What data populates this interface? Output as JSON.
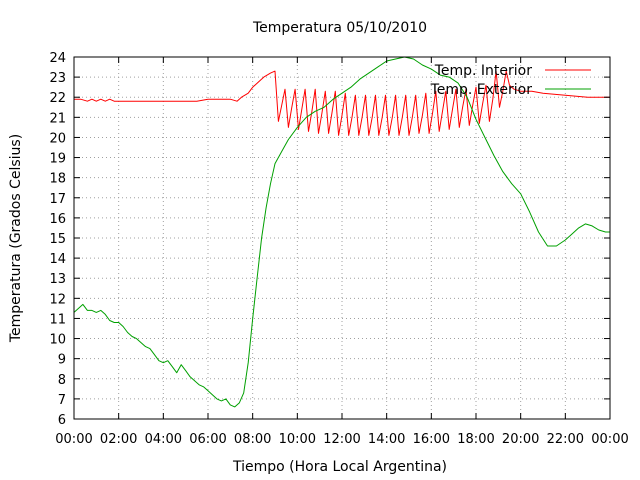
{
  "chart_data": {
    "type": "line",
    "title": "Temperatura 05/10/2010",
    "xlabel": "Tiempo (Hora Local Argentina)",
    "ylabel": "Temperatura (Grados Celsius)",
    "xlim": [
      0,
      24
    ],
    "ylim": [
      6,
      24
    ],
    "x_tick_labels": [
      "00:00",
      "02:00",
      "04:00",
      "06:00",
      "08:00",
      "10:00",
      "12:00",
      "14:00",
      "16:00",
      "18:00",
      "20:00",
      "22:00",
      "00:00"
    ],
    "y_ticks": [
      6,
      7,
      8,
      9,
      10,
      11,
      12,
      13,
      14,
      15,
      16,
      17,
      18,
      19,
      20,
      21,
      22,
      23,
      24
    ],
    "grid": true,
    "legend_position": "top-right",
    "colors": {
      "interior": "#ff0000",
      "exterior": "#00a000"
    },
    "series": [
      {
        "name": "Temp. Interior",
        "color": "#ff0000",
        "x": [
          0,
          0.3,
          0.6,
          0.8,
          1.0,
          1.2,
          1.4,
          1.6,
          1.8,
          2.0,
          3.0,
          4.0,
          5.0,
          5.5,
          6.0,
          6.5,
          7.0,
          7.3,
          7.5,
          7.8,
          8.0,
          8.3,
          8.5,
          8.8,
          9.0,
          9.15,
          9.3,
          9.45,
          9.6,
          9.75,
          9.9,
          10.05,
          10.2,
          10.35,
          10.5,
          10.65,
          10.8,
          10.95,
          11.1,
          11.25,
          11.4,
          11.55,
          11.7,
          11.85,
          12.0,
          12.15,
          12.3,
          12.45,
          12.6,
          12.75,
          12.9,
          13.05,
          13.2,
          13.35,
          13.5,
          13.65,
          13.8,
          13.95,
          14.1,
          14.25,
          14.4,
          14.55,
          14.7,
          14.85,
          15.0,
          15.15,
          15.3,
          15.45,
          15.6,
          15.75,
          15.9,
          16.05,
          16.2,
          16.35,
          16.5,
          16.65,
          16.8,
          16.95,
          17.1,
          17.25,
          17.4,
          17.55,
          17.7,
          17.85,
          18.0,
          18.15,
          18.3,
          18.45,
          18.6,
          18.75,
          18.9,
          19.05,
          19.2,
          19.35,
          19.5,
          19.7,
          20.0,
          20.5,
          21.0,
          22.0,
          23.0,
          24.0
        ],
        "values": [
          21.9,
          21.9,
          21.8,
          21.9,
          21.8,
          21.9,
          21.8,
          21.9,
          21.8,
          21.8,
          21.8,
          21.8,
          21.8,
          21.8,
          21.9,
          21.9,
          21.9,
          21.8,
          22.0,
          22.2,
          22.5,
          22.8,
          23.0,
          23.2,
          23.3,
          20.8,
          21.6,
          22.4,
          20.5,
          21.5,
          22.4,
          20.4,
          21.4,
          22.4,
          20.3,
          21.3,
          22.4,
          20.2,
          21.2,
          22.3,
          20.2,
          21.2,
          22.3,
          20.1,
          21.1,
          22.2,
          20.1,
          21.0,
          22.1,
          20.1,
          21.0,
          22.1,
          20.1,
          21.0,
          22.1,
          20.1,
          21.0,
          22.1,
          20.1,
          21.0,
          22.1,
          20.1,
          21.0,
          22.1,
          20.1,
          21.0,
          22.1,
          20.2,
          21.1,
          22.2,
          20.2,
          21.2,
          22.3,
          20.3,
          21.3,
          22.3,
          20.4,
          21.4,
          22.4,
          20.5,
          21.5,
          22.4,
          20.6,
          21.6,
          22.5,
          20.7,
          21.7,
          22.6,
          20.8,
          21.9,
          23.3,
          21.5,
          22.3,
          23.3,
          22.6,
          22.4,
          22.3,
          22.3,
          22.2,
          22.1,
          22.0,
          22.0
        ]
      },
      {
        "name": "Temp. Exterior",
        "color": "#00a000",
        "x": [
          0,
          0.2,
          0.4,
          0.6,
          0.8,
          1.0,
          1.2,
          1.4,
          1.6,
          1.8,
          2.0,
          2.2,
          2.4,
          2.6,
          2.8,
          3.0,
          3.2,
          3.4,
          3.6,
          3.8,
          4.0,
          4.2,
          4.4,
          4.6,
          4.8,
          5.0,
          5.2,
          5.4,
          5.6,
          5.8,
          6.0,
          6.2,
          6.4,
          6.6,
          6.8,
          7.0,
          7.2,
          7.4,
          7.6,
          7.8,
          8.0,
          8.2,
          8.4,
          8.6,
          8.8,
          9.0,
          9.3,
          9.6,
          10.0,
          10.4,
          10.8,
          11.2,
          11.6,
          12.0,
          12.4,
          12.8,
          13.2,
          13.6,
          14.0,
          14.4,
          14.8,
          15.2,
          15.6,
          16.0,
          16.4,
          16.8,
          17.2,
          17.6,
          18.0,
          18.4,
          18.8,
          19.2,
          19.6,
          20.0,
          20.4,
          20.8,
          21.2,
          21.6,
          22.0,
          22.3,
          22.6,
          22.9,
          23.2,
          23.5,
          23.8,
          24.0
        ],
        "values": [
          11.3,
          11.5,
          11.7,
          11.4,
          11.4,
          11.3,
          11.4,
          11.2,
          10.9,
          10.8,
          10.8,
          10.6,
          10.3,
          10.1,
          10.0,
          9.8,
          9.6,
          9.5,
          9.2,
          8.9,
          8.8,
          8.9,
          8.6,
          8.3,
          8.7,
          8.4,
          8.1,
          7.9,
          7.7,
          7.6,
          7.4,
          7.2,
          7.0,
          6.9,
          7.0,
          6.7,
          6.6,
          6.8,
          7.3,
          8.8,
          11.0,
          13.0,
          15.0,
          16.5,
          17.7,
          18.7,
          19.3,
          19.9,
          20.5,
          21.0,
          21.3,
          21.5,
          21.9,
          22.2,
          22.5,
          22.9,
          23.2,
          23.5,
          23.8,
          23.9,
          24.0,
          23.9,
          23.6,
          23.4,
          23.1,
          23.0,
          22.7,
          22.0,
          20.9,
          20.0,
          19.1,
          18.3,
          17.7,
          17.2,
          16.3,
          15.3,
          14.6,
          14.6,
          14.9,
          15.2,
          15.5,
          15.7,
          15.6,
          15.4,
          15.3,
          15.3
        ]
      }
    ]
  }
}
